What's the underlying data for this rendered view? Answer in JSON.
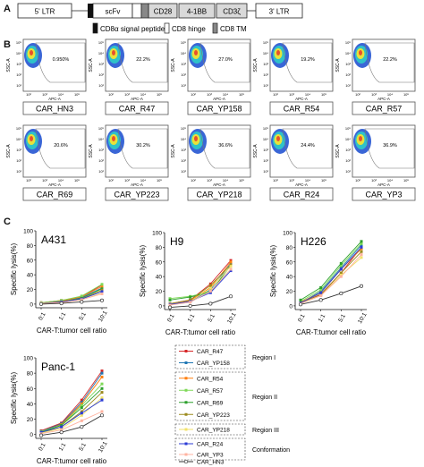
{
  "panel_labels": {
    "a": "A",
    "b": "B",
    "c": "C"
  },
  "construct": {
    "segments": [
      {
        "label": "5' LTR",
        "fill": "#ffffff"
      },
      {
        "label": "scFv",
        "fill": "#ffffff"
      },
      {
        "label": "CD28",
        "fill": "#d9d9d9"
      },
      {
        "label": "4-1BB",
        "fill": "#d9d9d9"
      },
      {
        "label": "CD3ζ",
        "fill": "#d9d9d9"
      },
      {
        "label": "3' LTR",
        "fill": "#ffffff"
      }
    ],
    "legend": [
      {
        "label": "CD8α signal peptide",
        "fill": "#111111"
      },
      {
        "label": "CD8 hinge",
        "fill": "#ffffff"
      },
      {
        "label": "CD8 TM",
        "fill": "#888888"
      }
    ]
  },
  "flow": {
    "ylabel": "SSC-A",
    "xlabel": "APC-A",
    "yticks": [
      "10⁵",
      "10⁴",
      "10³",
      "10²",
      "10¹"
    ],
    "xticks": [
      "10²",
      "10³",
      "10⁴",
      "10⁵"
    ],
    "plots": [
      {
        "name": "CAR_HN3",
        "pct": "0.950%"
      },
      {
        "name": "CAR_R47",
        "pct": "22.2%"
      },
      {
        "name": "CAR_YP158",
        "pct": "27.0%"
      },
      {
        "name": "CAR_R54",
        "pct": "19.2%"
      },
      {
        "name": "CAR_R57",
        "pct": "22.2%"
      },
      {
        "name": "CAR_R69",
        "pct": "20.6%"
      },
      {
        "name": "CAR_YP223",
        "pct": "30.2%"
      },
      {
        "name": "CAR_YP218",
        "pct": "36.6%"
      },
      {
        "name": "CAR_R24",
        "pct": "24.4%"
      },
      {
        "name": "CAR_YP3",
        "pct": "36.9%"
      }
    ]
  },
  "lysis": {
    "xlabel": "CAR-T:tumor cell ratio",
    "ylabel": "Specific lysis(%)"
  },
  "legend": {
    "groups": [
      {
        "region": "Region I",
        "items": [
          "CAR_R47",
          "CAR_YP158"
        ]
      },
      {
        "region": "Region II",
        "items": [
          "CAR_R54",
          "CAR_R57",
          "CAR_R69",
          "CAR_YP223"
        ]
      },
      {
        "region": "Region III",
        "items": [
          "CAR_YP218"
        ]
      },
      {
        "region": "Conformation",
        "items": [
          "CAR_R24",
          "CAR_YP3"
        ]
      }
    ],
    "loose_item": "CAR_HN3"
  },
  "chart_data": [
    {
      "type": "line",
      "title": "A431",
      "xlabel": "CAR-T:tumor cell ratio",
      "ylabel": "Specific lysis(%)",
      "categories": [
        "0:1",
        "1:1",
        "5:1",
        "10:1"
      ],
      "ylim": [
        0,
        100
      ],
      "yticks": [
        0,
        20,
        40,
        60,
        80,
        100
      ],
      "series": [
        {
          "name": "CAR_R47",
          "color": "#d62728",
          "values": [
            2,
            5,
            10,
            26
          ]
        },
        {
          "name": "CAR_YP158",
          "color": "#1f77b4",
          "values": [
            1,
            4,
            9,
            22
          ]
        },
        {
          "name": "CAR_R54",
          "color": "#ff7f0e",
          "values": [
            1,
            4,
            10,
            24
          ]
        },
        {
          "name": "CAR_R57",
          "color": "#7ed957",
          "values": [
            2,
            5,
            11,
            27
          ]
        },
        {
          "name": "CAR_R69",
          "color": "#2ca02c",
          "values": [
            1,
            3,
            8,
            21
          ]
        },
        {
          "name": "CAR_YP223",
          "color": "#9c8b1e",
          "values": [
            1,
            3,
            7,
            19
          ]
        },
        {
          "name": "CAR_YP218",
          "color": "#f2e26b",
          "values": [
            0,
            2,
            6,
            15
          ]
        },
        {
          "name": "CAR_R24",
          "color": "#2b3bd6",
          "values": [
            1,
            3,
            7,
            17
          ]
        },
        {
          "name": "CAR_YP3",
          "color": "#ffb3a0",
          "values": [
            1,
            2,
            6,
            14
          ]
        },
        {
          "name": "CAR_HN3",
          "color": "#333333",
          "values": [
            0,
            1,
            3,
            5
          ]
        }
      ]
    },
    {
      "type": "line",
      "title": "H9",
      "xlabel": "CAR-T:tumor cell ratio",
      "ylabel": "Specific lysis(%)",
      "categories": [
        "0:1",
        "1:1",
        "5:1",
        "10:1"
      ],
      "ylim": [
        0,
        100
      ],
      "yticks": [
        0,
        20,
        40,
        60,
        80,
        100
      ],
      "series": [
        {
          "name": "CAR_R47",
          "color": "#d62728",
          "values": [
            3,
            8,
            30,
            62
          ]
        },
        {
          "name": "CAR_YP158",
          "color": "#1f77b4",
          "values": [
            2,
            6,
            22,
            58
          ]
        },
        {
          "name": "CAR_R54",
          "color": "#ff7f0e",
          "values": [
            2,
            7,
            25,
            60
          ]
        },
        {
          "name": "CAR_R57",
          "color": "#7ed957",
          "values": [
            10,
            13,
            20,
            50
          ]
        },
        {
          "name": "CAR_R69",
          "color": "#2ca02c",
          "values": [
            8,
            12,
            19,
            55
          ]
        },
        {
          "name": "CAR_YP223",
          "color": "#9c8b1e",
          "values": [
            3,
            8,
            28,
            56
          ]
        },
        {
          "name": "CAR_YP218",
          "color": "#f2e26b",
          "values": [
            2,
            6,
            24,
            54
          ]
        },
        {
          "name": "CAR_R24",
          "color": "#2b3bd6",
          "values": [
            2,
            6,
            18,
            48
          ]
        },
        {
          "name": "CAR_YP3",
          "color": "#ffb3a0",
          "values": [
            1,
            5,
            20,
            50
          ]
        },
        {
          "name": "CAR_HN3",
          "color": "#333333",
          "values": [
            -2,
            0,
            3,
            13
          ]
        }
      ]
    },
    {
      "type": "line",
      "title": "H226",
      "xlabel": "CAR-T:tumor cell ratio",
      "ylabel": "Specific lysis(%)",
      "categories": [
        "0:1",
        "1:1",
        "5:1",
        "10:1"
      ],
      "ylim": [
        0,
        100
      ],
      "yticks": [
        0,
        20,
        40,
        60,
        80,
        100
      ],
      "series": [
        {
          "name": "CAR_R47",
          "color": "#d62728",
          "values": [
            5,
            15,
            45,
            80
          ]
        },
        {
          "name": "CAR_YP158",
          "color": "#1f77b4",
          "values": [
            4,
            20,
            52,
            83
          ]
        },
        {
          "name": "CAR_R54",
          "color": "#ff7f0e",
          "values": [
            5,
            18,
            50,
            78
          ]
        },
        {
          "name": "CAR_R57",
          "color": "#7ed957",
          "values": [
            6,
            22,
            55,
            85
          ]
        },
        {
          "name": "CAR_R69",
          "color": "#2ca02c",
          "values": [
            8,
            25,
            58,
            88
          ]
        },
        {
          "name": "CAR_YP223",
          "color": "#9c8b1e",
          "values": [
            4,
            16,
            45,
            74
          ]
        },
        {
          "name": "CAR_YP218",
          "color": "#f2e26b",
          "values": [
            3,
            14,
            42,
            66
          ]
        },
        {
          "name": "CAR_R24",
          "color": "#2b3bd6",
          "values": [
            4,
            18,
            50,
            80
          ]
        },
        {
          "name": "CAR_YP3",
          "color": "#ffb3a0",
          "values": [
            3,
            14,
            40,
            70
          ]
        },
        {
          "name": "CAR_HN3",
          "color": "#333333",
          "values": [
            2,
            8,
            17,
            27
          ]
        }
      ]
    },
    {
      "type": "line",
      "title": "Panc-1",
      "xlabel": "CAR-T:tumor cell ratio",
      "ylabel": "Specific lysis(%)",
      "categories": [
        "0:1",
        "1:1",
        "5:1",
        "10:1"
      ],
      "ylim": [
        0,
        100
      ],
      "yticks": [
        0,
        20,
        40,
        60,
        80,
        100
      ],
      "series": [
        {
          "name": "CAR_R47",
          "color": "#d62728",
          "values": [
            5,
            15,
            45,
            83
          ]
        },
        {
          "name": "CAR_YP158",
          "color": "#1f77b4",
          "values": [
            4,
            14,
            42,
            80
          ]
        },
        {
          "name": "CAR_R54",
          "color": "#ff7f0e",
          "values": [
            3,
            13,
            40,
            75
          ]
        },
        {
          "name": "CAR_R57",
          "color": "#7ed957",
          "values": [
            4,
            12,
            38,
            66
          ]
        },
        {
          "name": "CAR_R69",
          "color": "#2ca02c",
          "values": [
            3,
            12,
            35,
            60
          ]
        },
        {
          "name": "CAR_YP223",
          "color": "#9c8b1e",
          "values": [
            2,
            10,
            30,
            55
          ]
        },
        {
          "name": "CAR_YP218",
          "color": "#f2e26b",
          "values": [
            2,
            8,
            25,
            48
          ]
        },
        {
          "name": "CAR_R24",
          "color": "#2b3bd6",
          "values": [
            3,
            10,
            28,
            45
          ]
        },
        {
          "name": "CAR_YP3",
          "color": "#ffb3a0",
          "values": [
            1,
            6,
            18,
            30
          ]
        },
        {
          "name": "CAR_HN3",
          "color": "#333333",
          "values": [
            -1,
            3,
            10,
            25
          ]
        }
      ]
    }
  ]
}
